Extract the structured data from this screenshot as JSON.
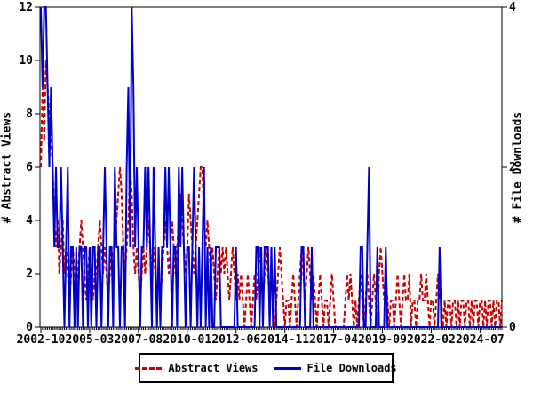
{
  "colors": {
    "background": "#ffffff",
    "axis": "#000000",
    "abstract_views": "#cc0000",
    "file_downloads": "#0000cc"
  },
  "chart_data": {
    "type": "line",
    "title": "",
    "frequency": "monthly",
    "x_start": "2002-10",
    "x_end": "2025-08",
    "grid": false,
    "x_tick_labels": [
      "2002-10",
      "2005-03",
      "2007-08",
      "2010-01",
      "2012-06",
      "2014-11",
      "2017-04",
      "2019-09",
      "2022-02",
      "2024-07"
    ],
    "x_tick_month_indices": [
      0,
      29,
      58,
      87,
      116,
      145,
      174,
      203,
      232,
      261
    ],
    "left_axis": {
      "label": "# Abstract Views",
      "min": 0,
      "max": 12,
      "ticks": [
        0,
        2,
        4,
        6,
        8,
        10,
        12
      ]
    },
    "right_axis": {
      "label": "# File Downloads",
      "min": 0,
      "max": 4,
      "ticks": [
        0,
        2,
        4
      ]
    },
    "legend": {
      "position": "bottom",
      "items": [
        "Abstract Views",
        "File Downloads"
      ]
    },
    "series": [
      {
        "name": "Abstract Views",
        "axis": "left",
        "style": "dashed",
        "color": "#cc0000",
        "values": [
          6,
          9,
          7,
          10,
          9,
          8,
          7,
          6,
          4,
          3,
          4,
          2,
          3,
          4,
          2,
          3,
          2,
          1,
          2,
          3,
          2,
          1,
          2,
          3,
          4,
          3,
          2,
          1,
          2,
          3,
          2,
          1,
          2,
          2,
          3,
          4,
          3,
          2,
          3,
          2,
          1,
          2,
          3,
          2,
          3,
          4,
          5,
          6,
          5,
          3,
          2,
          3,
          4,
          6,
          5,
          3,
          2,
          3,
          2,
          1,
          2,
          3,
          2,
          3,
          4,
          3,
          2,
          3,
          2,
          1,
          2,
          1,
          2,
          3,
          4,
          3,
          2,
          3,
          4,
          3,
          2,
          3,
          4,
          5,
          4,
          3,
          2,
          3,
          5,
          4,
          3,
          2,
          3,
          4,
          5,
          6,
          6,
          4,
          3,
          4,
          3,
          2,
          3,
          2,
          1,
          2,
          3,
          2,
          3,
          2,
          3,
          2,
          1,
          2,
          3,
          2,
          1,
          2,
          1,
          2,
          1,
          0,
          1,
          2,
          1,
          0,
          1,
          2,
          1,
          2,
          3,
          2,
          1,
          2,
          3,
          2,
          1,
          2,
          1,
          0,
          1,
          2,
          3,
          2,
          1,
          0,
          1,
          1,
          0,
          1,
          2,
          1,
          0,
          1,
          2,
          3,
          2,
          1,
          2,
          3,
          2,
          1,
          2,
          1,
          0,
          1,
          2,
          1,
          0,
          1,
          1,
          0,
          1,
          2,
          1,
          0,
          0,
          0,
          0,
          0,
          0,
          1,
          2,
          1,
          2,
          1,
          0,
          1,
          0,
          1,
          2,
          1,
          0,
          1,
          2,
          1,
          0,
          1,
          2,
          1,
          0,
          2,
          3,
          2,
          1,
          2,
          1,
          0,
          1,
          1,
          0,
          1,
          2,
          1,
          0,
          1,
          2,
          1,
          1,
          2,
          0,
          1,
          1,
          0,
          1,
          1,
          2,
          1,
          1,
          2,
          1,
          0,
          1,
          1,
          0,
          1,
          2,
          1,
          1,
          0,
          1,
          0,
          1,
          1,
          0,
          1,
          1,
          0,
          1,
          0,
          1,
          1,
          0,
          1,
          1,
          0,
          1,
          0,
          1,
          1,
          0,
          1,
          1,
          0,
          1,
          0,
          1,
          1,
          0,
          1,
          0,
          1,
          1,
          0,
          1
        ]
      },
      {
        "name": "File Downloads",
        "axis": "right",
        "style": "solid",
        "color": "#0000cc",
        "values": [
          4,
          3,
          4,
          4,
          3,
          2,
          3,
          2,
          1,
          2,
          1,
          1,
          2,
          1,
          0,
          1,
          2,
          0,
          1,
          1,
          0,
          1,
          0,
          1,
          1,
          0,
          1,
          1,
          0,
          1,
          0,
          1,
          1,
          0,
          1,
          1,
          0,
          1,
          2,
          1,
          0,
          1,
          1,
          0,
          2,
          1,
          1,
          0,
          1,
          1,
          0,
          2,
          3,
          1,
          4,
          3,
          1,
          2,
          1,
          0,
          1,
          1,
          2,
          1,
          2,
          1,
          0,
          2,
          1,
          0,
          1,
          0,
          1,
          1,
          2,
          1,
          2,
          1,
          0,
          1,
          1,
          0,
          2,
          1,
          2,
          1,
          0,
          1,
          1,
          0,
          1,
          2,
          1,
          0,
          1,
          0,
          1,
          2,
          0,
          1,
          0,
          1,
          0,
          0,
          1,
          1,
          1,
          0,
          0,
          0,
          0,
          0,
          0,
          0,
          0,
          0,
          1,
          0,
          0,
          0,
          0,
          0,
          0,
          0,
          0,
          0,
          0,
          0,
          1,
          1,
          0,
          1,
          0,
          1,
          1,
          1,
          0,
          1,
          0,
          1,
          0,
          0,
          0,
          0,
          0,
          0,
          0,
          0,
          0,
          0,
          0,
          0,
          0,
          0,
          0,
          1,
          1,
          0,
          0,
          0,
          0,
          1,
          0,
          0,
          0,
          0,
          0,
          0,
          0,
          0,
          0,
          0,
          0,
          0,
          0,
          0,
          0,
          0,
          0,
          0,
          0,
          0,
          0,
          0,
          0,
          0,
          0,
          0,
          0,
          0,
          1,
          1,
          0,
          0,
          1,
          2,
          0,
          0,
          0,
          0,
          1,
          0,
          0,
          0,
          0,
          1,
          0,
          0,
          0,
          0,
          0,
          0,
          0,
          0,
          0,
          0,
          0,
          0,
          0,
          0,
          0,
          0,
          0,
          0,
          0,
          0,
          0,
          0,
          0,
          0,
          0,
          0,
          0,
          0,
          0,
          0,
          0,
          1,
          0,
          0,
          0,
          0,
          0,
          0,
          0,
          0,
          0,
          0,
          0,
          0,
          0,
          0,
          0,
          0,
          0,
          0,
          0,
          0,
          0,
          0,
          0,
          0,
          0,
          0,
          0,
          0,
          0,
          0,
          0,
          0,
          0,
          0,
          0,
          0,
          0
        ]
      }
    ]
  }
}
